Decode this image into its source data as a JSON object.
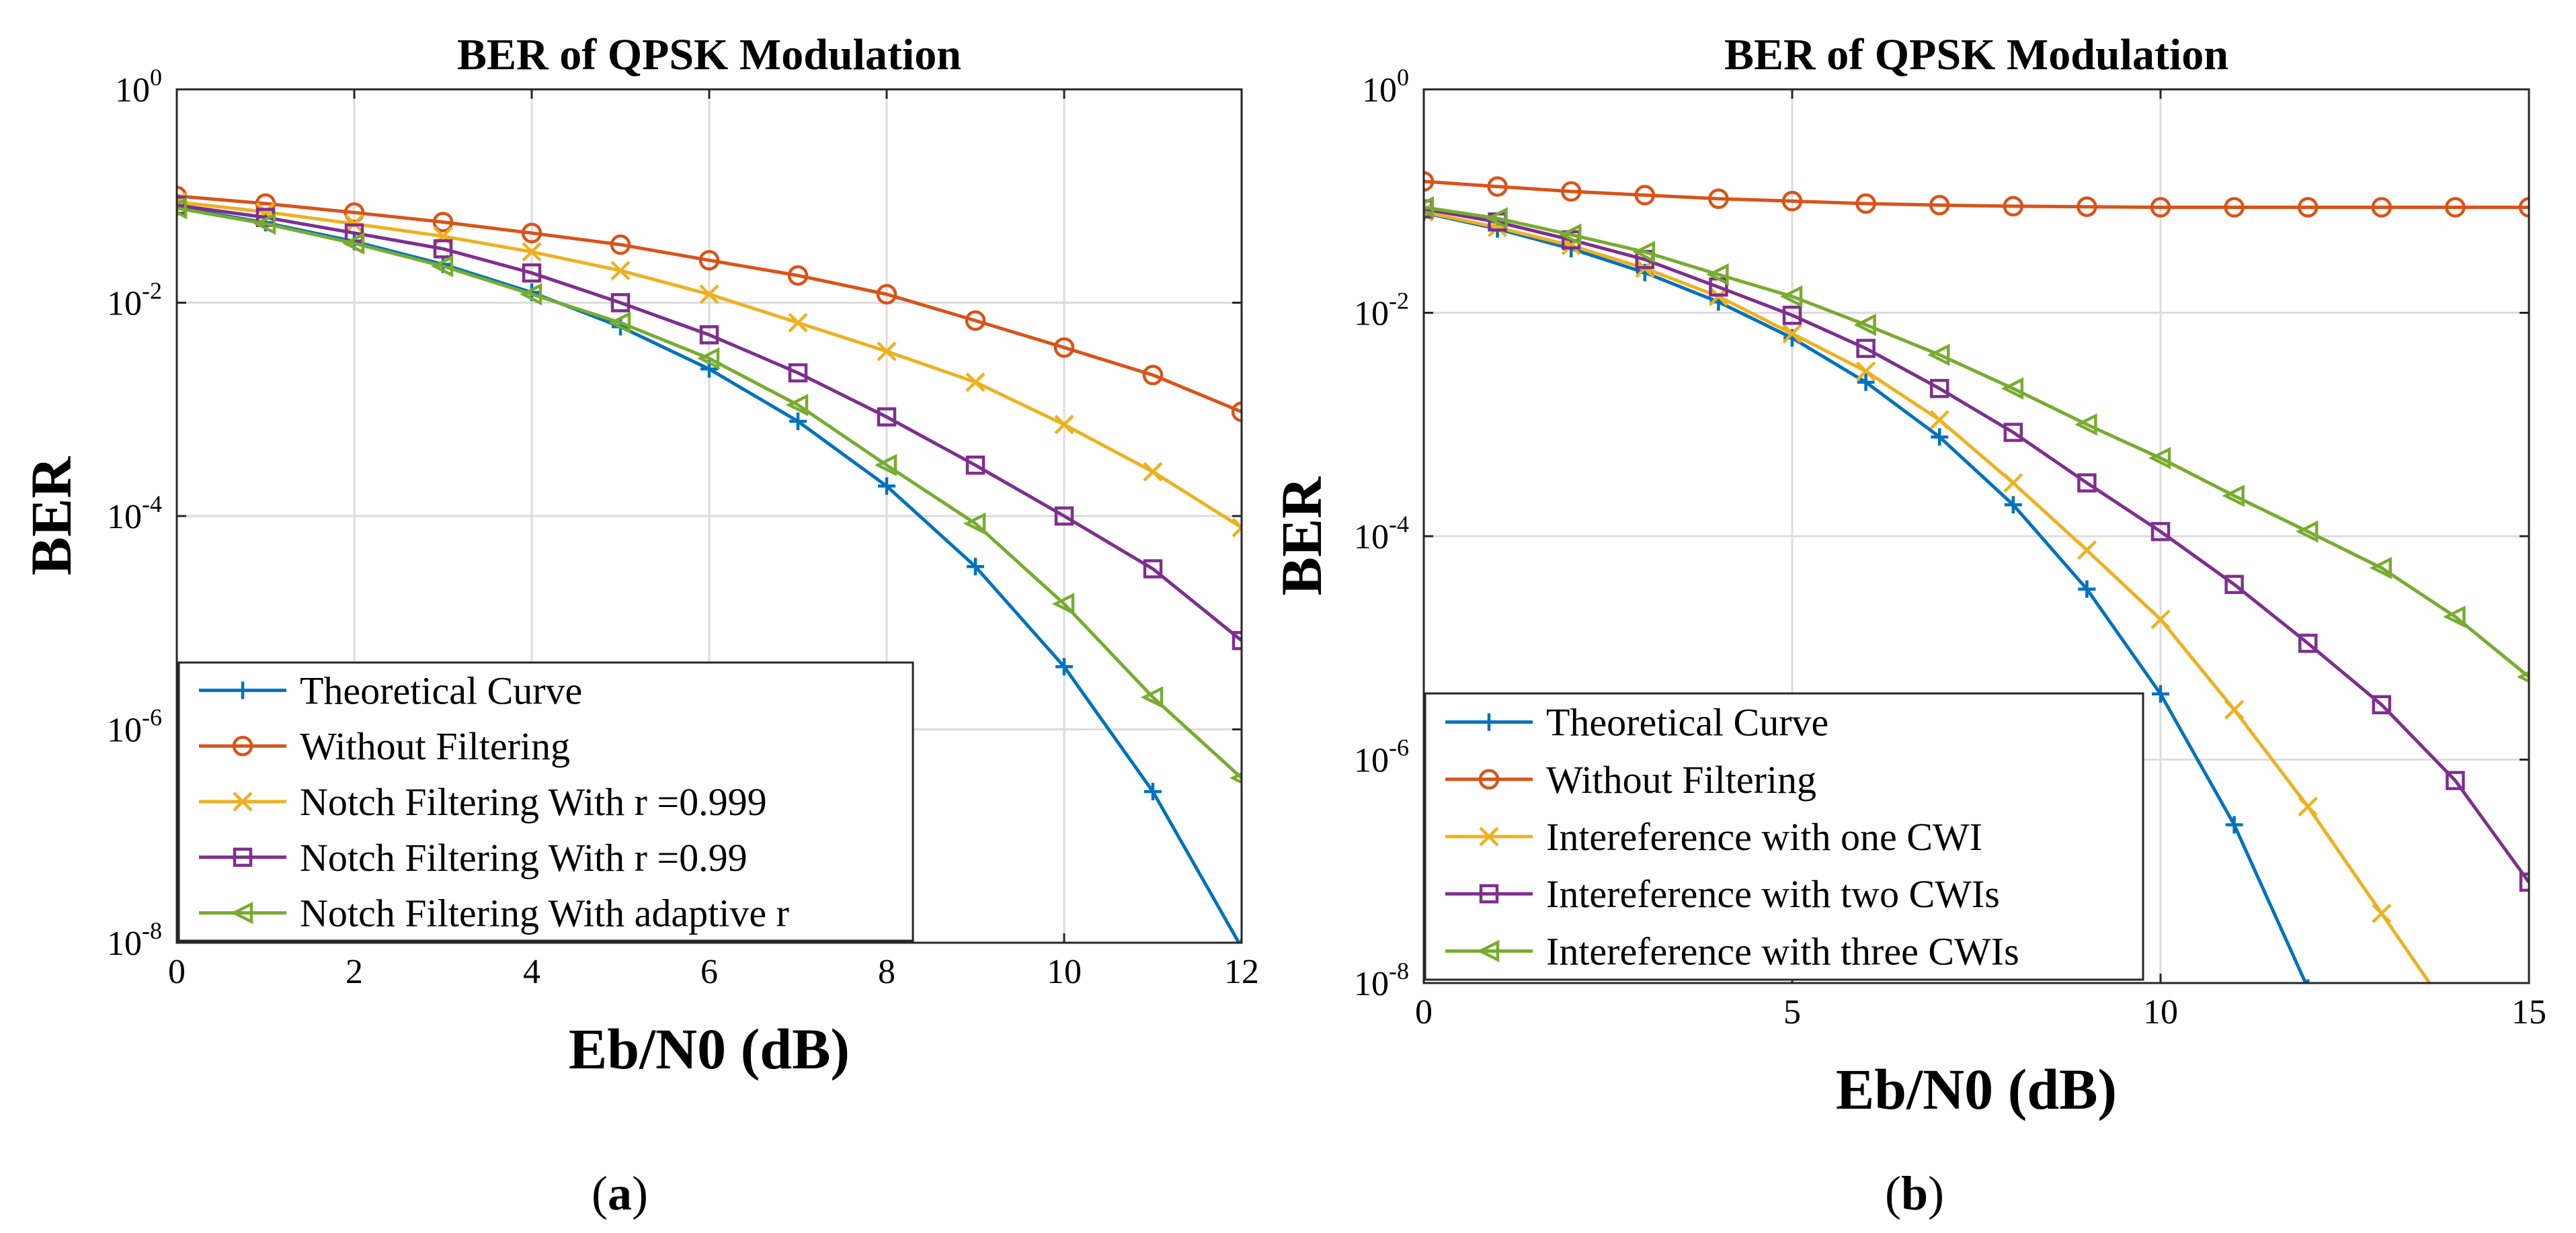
{
  "chart_data": [
    {
      "type": "line",
      "title": "BER of QPSK Modulation",
      "xlabel": "Eb/N0 (dB)",
      "ylabel": "BER",
      "yscale": "log",
      "xlim": [
        0,
        12
      ],
      "ylim_exp": [
        -8,
        0
      ],
      "xticks": [
        0,
        2,
        4,
        6,
        8,
        10,
        12
      ],
      "yticks_exp": [
        0,
        -2,
        -4,
        -6,
        -8
      ],
      "grid": true,
      "legend_position": "bottom-left",
      "caption_letter": "a",
      "caption_open": "(",
      "caption_close": ")",
      "x": [
        0,
        1,
        2,
        3,
        4,
        5,
        6,
        7,
        8,
        9,
        10,
        11,
        12
      ],
      "series": [
        {
          "name": "Theoretical Curve",
          "color": "#0072BD",
          "marker": "plus",
          "values": [
            0.0786,
            0.0563,
            0.0375,
            0.0229,
            0.0125,
            0.00595,
            0.00239,
            0.000773,
            0.000191,
            3.36e-05,
            3.87e-06,
            2.61e-07,
            9.01e-09
          ]
        },
        {
          "name": "Without Filtering",
          "color": "#D95319",
          "marker": "circle",
          "values": [
            0.1,
            0.085,
            0.07,
            0.057,
            0.045,
            0.035,
            0.025,
            0.018,
            0.012,
            0.0068,
            0.0038,
            0.0021,
            0.00095
          ]
        },
        {
          "name": "Notch Filtering With r =0.999",
          "color": "#EDB120",
          "marker": "x",
          "values": [
            0.088,
            0.071,
            0.055,
            0.042,
            0.03,
            0.02,
            0.012,
            0.0065,
            0.0035,
            0.0018,
            0.00072,
            0.00026,
            7.8e-05
          ]
        },
        {
          "name": "Notch Filtering With  r =0.99",
          "color": "#7E2F8E",
          "marker": "square",
          "values": [
            0.082,
            0.063,
            0.045,
            0.032,
            0.019,
            0.01,
            0.005,
            0.0022,
            0.00085,
            0.0003,
            0.0001,
            3.2e-05,
            6.8e-06
          ]
        },
        {
          "name": "Notch Filtering With adaptive r",
          "color": "#77AC30",
          "marker": "triangle-left",
          "values": [
            0.077,
            0.055,
            0.036,
            0.022,
            0.012,
            0.0065,
            0.003,
            0.0011,
            0.0003,
            8.5e-05,
            1.5e-05,
            2e-06,
            3.5e-07
          ]
        }
      ]
    },
    {
      "type": "line",
      "title": "BER of QPSK Modulation",
      "xlabel": "Eb/N0 (dB)",
      "ylabel": "BER",
      "yscale": "log",
      "xlim": [
        0,
        15
      ],
      "ylim_exp": [
        -8,
        0
      ],
      "xticks": [
        0,
        5,
        10,
        15
      ],
      "yticks_exp": [
        0,
        -2,
        -4,
        -6,
        -8
      ],
      "grid": true,
      "legend_position": "bottom-left",
      "caption_letter": "b",
      "caption_open": "(",
      "caption_close": ")",
      "x": [
        0,
        1,
        2,
        3,
        4,
        5,
        6,
        7,
        8,
        9,
        10,
        11,
        12,
        13,
        14,
        15
      ],
      "series": [
        {
          "name": "Theoretical Curve",
          "color": "#0072BD",
          "marker": "plus",
          "values": [
            0.0786,
            0.0563,
            0.0375,
            0.0229,
            0.0125,
            0.00595,
            0.00239,
            0.000773,
            0.000191,
            3.36e-05,
            3.87e-06,
            2.61e-07,
            9.01e-09,
            null,
            null,
            null
          ]
        },
        {
          "name": "Without Filtering",
          "color": "#D95319",
          "marker": "circle",
          "values": [
            0.15,
            0.135,
            0.122,
            0.113,
            0.105,
            0.1,
            0.095,
            0.092,
            0.09,
            0.089,
            0.088,
            0.088,
            0.088,
            0.088,
            0.088,
            0.088
          ]
        },
        {
          "name": "Intereference with one CWI",
          "color": "#EDB120",
          "marker": "x",
          "values": [
            0.08,
            0.058,
            0.04,
            0.025,
            0.014,
            0.0065,
            0.003,
            0.0011,
            0.0003,
            7.5e-05,
            1.8e-05,
            2.8e-06,
            3.8e-07,
            4.2e-08,
            null,
            null
          ]
        },
        {
          "name": "Intereference with two CWIs",
          "color": "#7E2F8E",
          "marker": "square",
          "values": [
            0.085,
            0.065,
            0.045,
            0.03,
            0.017,
            0.0095,
            0.0048,
            0.0021,
            0.00085,
            0.0003,
            0.00011,
            3.7e-05,
            1.1e-05,
            3.1e-06,
            6.5e-07,
            8e-08
          ]
        },
        {
          "name": "Intereference with three CWIs",
          "color": "#77AC30",
          "marker": "triangle-left",
          "values": [
            0.088,
            0.07,
            0.05,
            0.035,
            0.022,
            0.014,
            0.0078,
            0.0042,
            0.0021,
            0.001,
            0.0005,
            0.00023,
            0.00011,
            5.2e-05,
            1.9e-05,
            5.5e-06
          ]
        }
      ]
    }
  ]
}
